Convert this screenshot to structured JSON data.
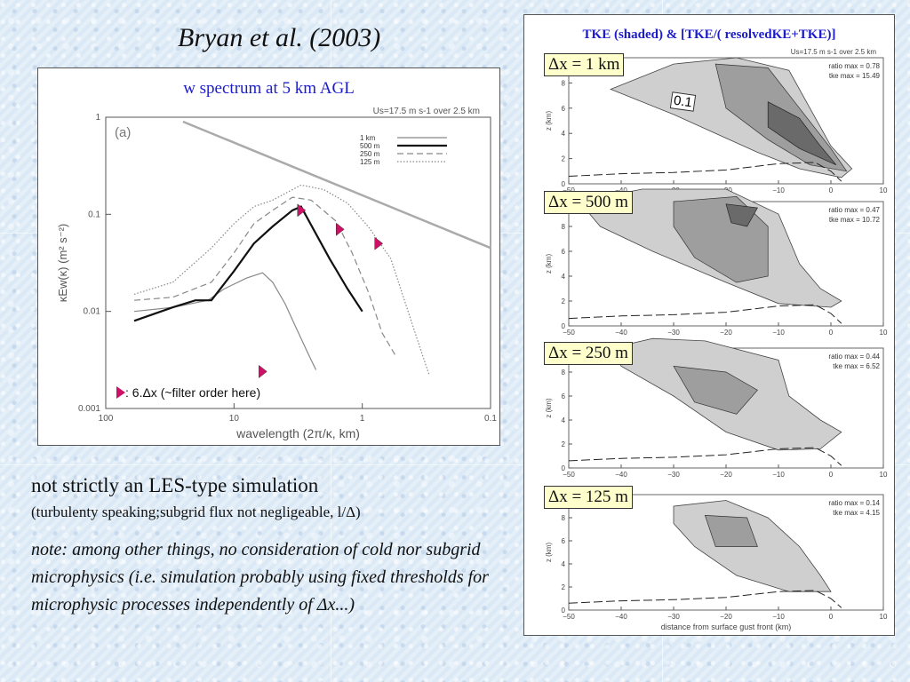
{
  "slide": {
    "title": "Bryan et al. (2003)",
    "note_main": "not strictly an LES-type simulation",
    "note_sub": "(turbulenty speaking;subgrid flux not negligeable, l/Δ)",
    "note_italic": "note: among other things, no consideration of cold nor subgrid microphysics (i.e. simulation probably using fixed thresholds for microphysic processes independently of Δx...)"
  },
  "left_panel": {
    "caption": "w spectrum at 5 km AGL",
    "marker_legend": ": 6.Δx (~filter order here)"
  },
  "right_panel": {
    "caption": "TKE (shaded) & [TKE/( resolvedKE+TKE)]",
    "contour_box_label": "0.1",
    "subplots": [
      {
        "dx_label": "Δx = 1 km",
        "ratio_max": "ratio max = 0.78",
        "tke_max": "tke max = 15.49"
      },
      {
        "dx_label": "Δx = 500 m",
        "ratio_max": "ratio max = 0.47",
        "tke_max": "tke max = 10.72"
      },
      {
        "dx_label": "Δx = 250 m",
        "ratio_max": "ratio max = 0.44",
        "tke_max": "tke max = 6.52"
      },
      {
        "dx_label": "Δx = 125 m",
        "ratio_max": "ratio max = 0.14",
        "tke_max": "tke max = 4.15"
      }
    ]
  },
  "chart_data": [
    {
      "type": "line",
      "panel_label": "(a)",
      "header": "Us=17.5 m s-1 over 2.5 km",
      "xlabel": "wavelength (2π/κ, km)",
      "ylabel": "κEw(κ) (m² s⁻²)",
      "xscale": "log",
      "yscale": "log",
      "xlim": [
        100,
        0.1
      ],
      "ylim": [
        0.001,
        1
      ],
      "x_ticks": [
        "100",
        "10",
        "1",
        "0.1"
      ],
      "y_ticks": [
        "1",
        "0.1",
        "0.01",
        "0.001"
      ],
      "legend": [
        "1 km",
        "500 m",
        "250 m",
        "125 m"
      ],
      "series": [
        {
          "name": "1 km",
          "style": "thin solid gray",
          "x": [
            60,
            30,
            16,
            12,
            8,
            6,
            5,
            4,
            3.2,
            2.6,
            2.3
          ],
          "y": [
            0.01,
            0.011,
            0.013,
            0.017,
            0.022,
            0.025,
            0.02,
            0.012,
            0.0063,
            0.0035,
            0.0025
          ]
        },
        {
          "name": "500 m",
          "style": "thick solid black",
          "x": [
            60,
            30,
            20,
            15,
            10,
            7,
            5,
            3.5,
            3,
            2.4,
            1.8,
            1.3,
            1.0
          ],
          "y": [
            0.008,
            0.011,
            0.013,
            0.013,
            0.026,
            0.05,
            0.075,
            0.11,
            0.12,
            0.07,
            0.035,
            0.017,
            0.01
          ]
        },
        {
          "name": "250 m",
          "style": "dashed gray",
          "x": [
            60,
            30,
            15,
            10,
            7,
            5,
            3.5,
            2.5,
            1.6,
            1.2,
            0.9,
            0.7,
            0.55
          ],
          "y": [
            0.013,
            0.014,
            0.02,
            0.04,
            0.08,
            0.11,
            0.15,
            0.14,
            0.085,
            0.04,
            0.016,
            0.006,
            0.0035
          ]
        },
        {
          "name": "125 m",
          "style": "dotted gray",
          "x": [
            60,
            30,
            15,
            10,
            7,
            5,
            3,
            2,
            1.3,
            0.9,
            0.6,
            0.45,
            0.35,
            0.3
          ],
          "y": [
            0.015,
            0.02,
            0.045,
            0.08,
            0.12,
            0.14,
            0.2,
            0.18,
            0.13,
            0.075,
            0.035,
            0.011,
            0.004,
            0.0022
          ]
        },
        {
          "name": "reference slope",
          "style": "thick light gray",
          "x": [
            25,
            0.1
          ],
          "y": [
            0.9,
            0.045
          ]
        }
      ],
      "markers_6dx": [
        {
          "x": 6,
          "y": 0.0024
        },
        {
          "x": 3,
          "y": 0.11
        },
        {
          "x": 1.5,
          "y": 0.07
        },
        {
          "x": 0.75,
          "y": 0.05
        }
      ]
    },
    {
      "type": "area",
      "subplots": 4,
      "xlabel": "distance from surface gust front (km)",
      "ylabel": "z (km)",
      "xlim": [
        -50,
        10
      ],
      "ylim": [
        0,
        10
      ],
      "x_ticks": [
        "-50",
        "-40",
        "-30",
        "-20",
        "-10",
        "0",
        "10"
      ],
      "y_ticks": [
        "0",
        "2",
        "4",
        "6",
        "8",
        "10"
      ],
      "header": "Us=17.5 m s-1 over 2.5 km"
    }
  ]
}
